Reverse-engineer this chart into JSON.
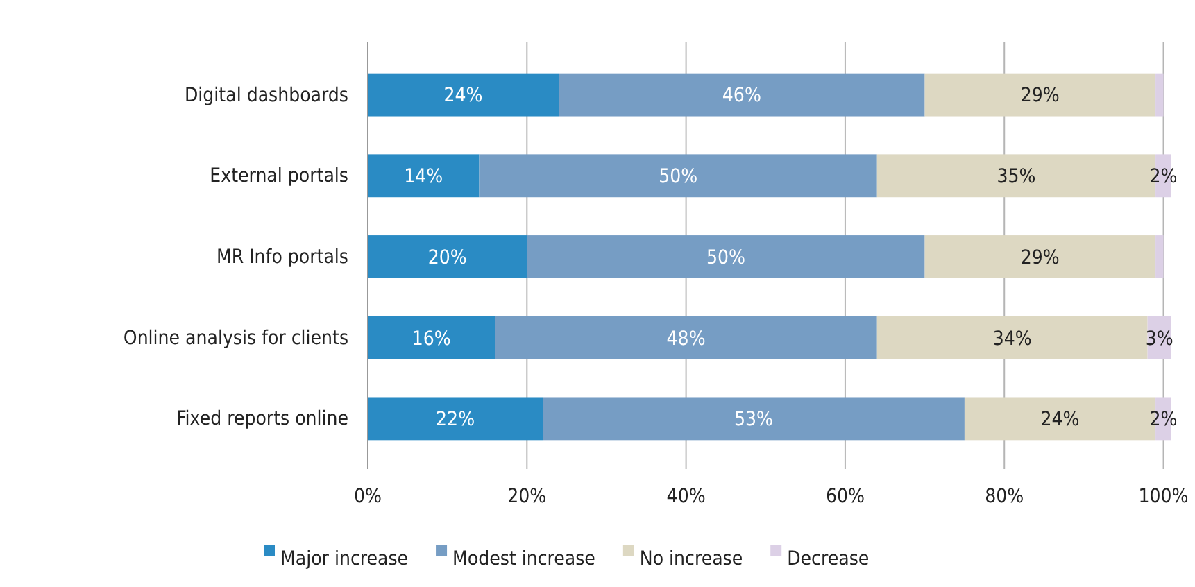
{
  "chart_data": {
    "type": "bar",
    "orientation": "horizontal",
    "stacked": true,
    "categories": [
      "Digital dashboards",
      "External portals",
      "MR Info portals",
      "Online analysis for clients",
      "Fixed reports online"
    ],
    "series": [
      {
        "name": "Major increase",
        "color": "#2a8bc4",
        "values": [
          24,
          14,
          20,
          16,
          22
        ],
        "value_labels": [
          "24%",
          "14%",
          "20%",
          "16%",
          "22%"
        ]
      },
      {
        "name": "Modest increase",
        "color": "#769dc4",
        "values": [
          46,
          50,
          50,
          48,
          53
        ],
        "value_labels": [
          "46%",
          "50%",
          "50%",
          "48%",
          "53%"
        ]
      },
      {
        "name": "No increase",
        "color": "#ddd8c2",
        "values": [
          29,
          35,
          29,
          34,
          24
        ],
        "value_labels": [
          "29%",
          "35%",
          "29%",
          "34%",
          "24%"
        ]
      },
      {
        "name": "Decrease",
        "color": "#dcd0e6",
        "values": [
          1,
          2,
          1,
          3,
          2
        ],
        "value_labels": [
          null,
          "2%",
          null,
          "3%",
          "2%"
        ]
      }
    ],
    "xlim": [
      0,
      101
    ],
    "xticks": [
      {
        "value": 0,
        "label": "0%"
      },
      {
        "value": 20,
        "label": "20%"
      },
      {
        "value": 40,
        "label": "40%"
      },
      {
        "value": 60,
        "label": "60%"
      },
      {
        "value": 80,
        "label": "80%"
      },
      {
        "value": 100,
        "label": "100%"
      }
    ],
    "grid": "x",
    "legend": "bottom"
  }
}
